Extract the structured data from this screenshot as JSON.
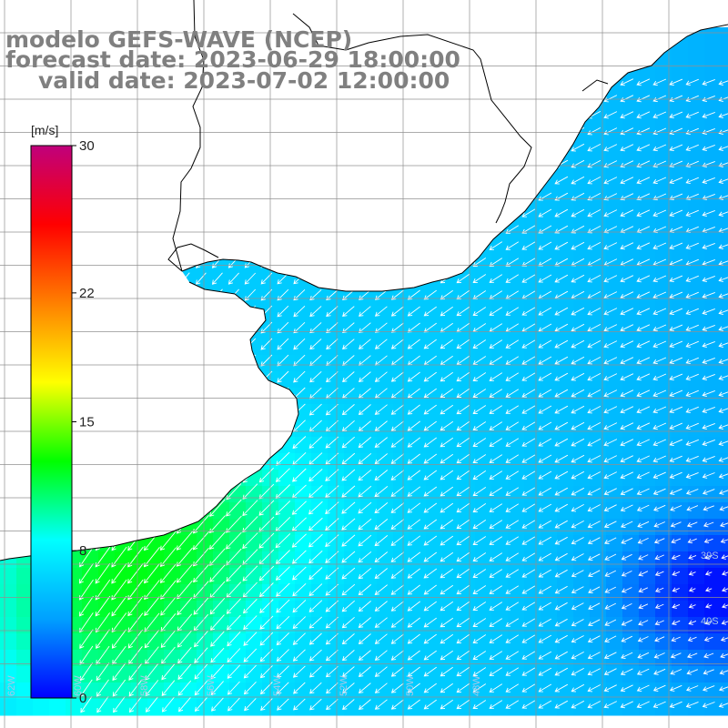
{
  "title": {
    "line1": "modelo GEFS-WAVE (NCEP)",
    "line2": "forecast date: 2023-06-29 18:00:00",
    "line3": "valid date: 2023-07-02 12:00:00"
  },
  "colorbar": {
    "unit": "[m/s]",
    "min": 0,
    "max": 30,
    "ticks": [
      0,
      8,
      15,
      22,
      30
    ],
    "colors": [
      "#0000ff",
      "#00a0ff",
      "#00ffff",
      "#00ff00",
      "#ffff00",
      "#ff8000",
      "#ff0000",
      "#c0007c"
    ]
  },
  "map": {
    "variable": "wind speed and direction (arrows)",
    "lat_labels": [
      "39S",
      "40S"
    ],
    "lon_labels": [
      "62W",
      "60W",
      "58W",
      "56W",
      "54W",
      "52W",
      "50W",
      "48W"
    ],
    "grid": true,
    "land_color": "#ffffff",
    "coastline_color": "#000000",
    "arrow_color": "#ffffff"
  }
}
